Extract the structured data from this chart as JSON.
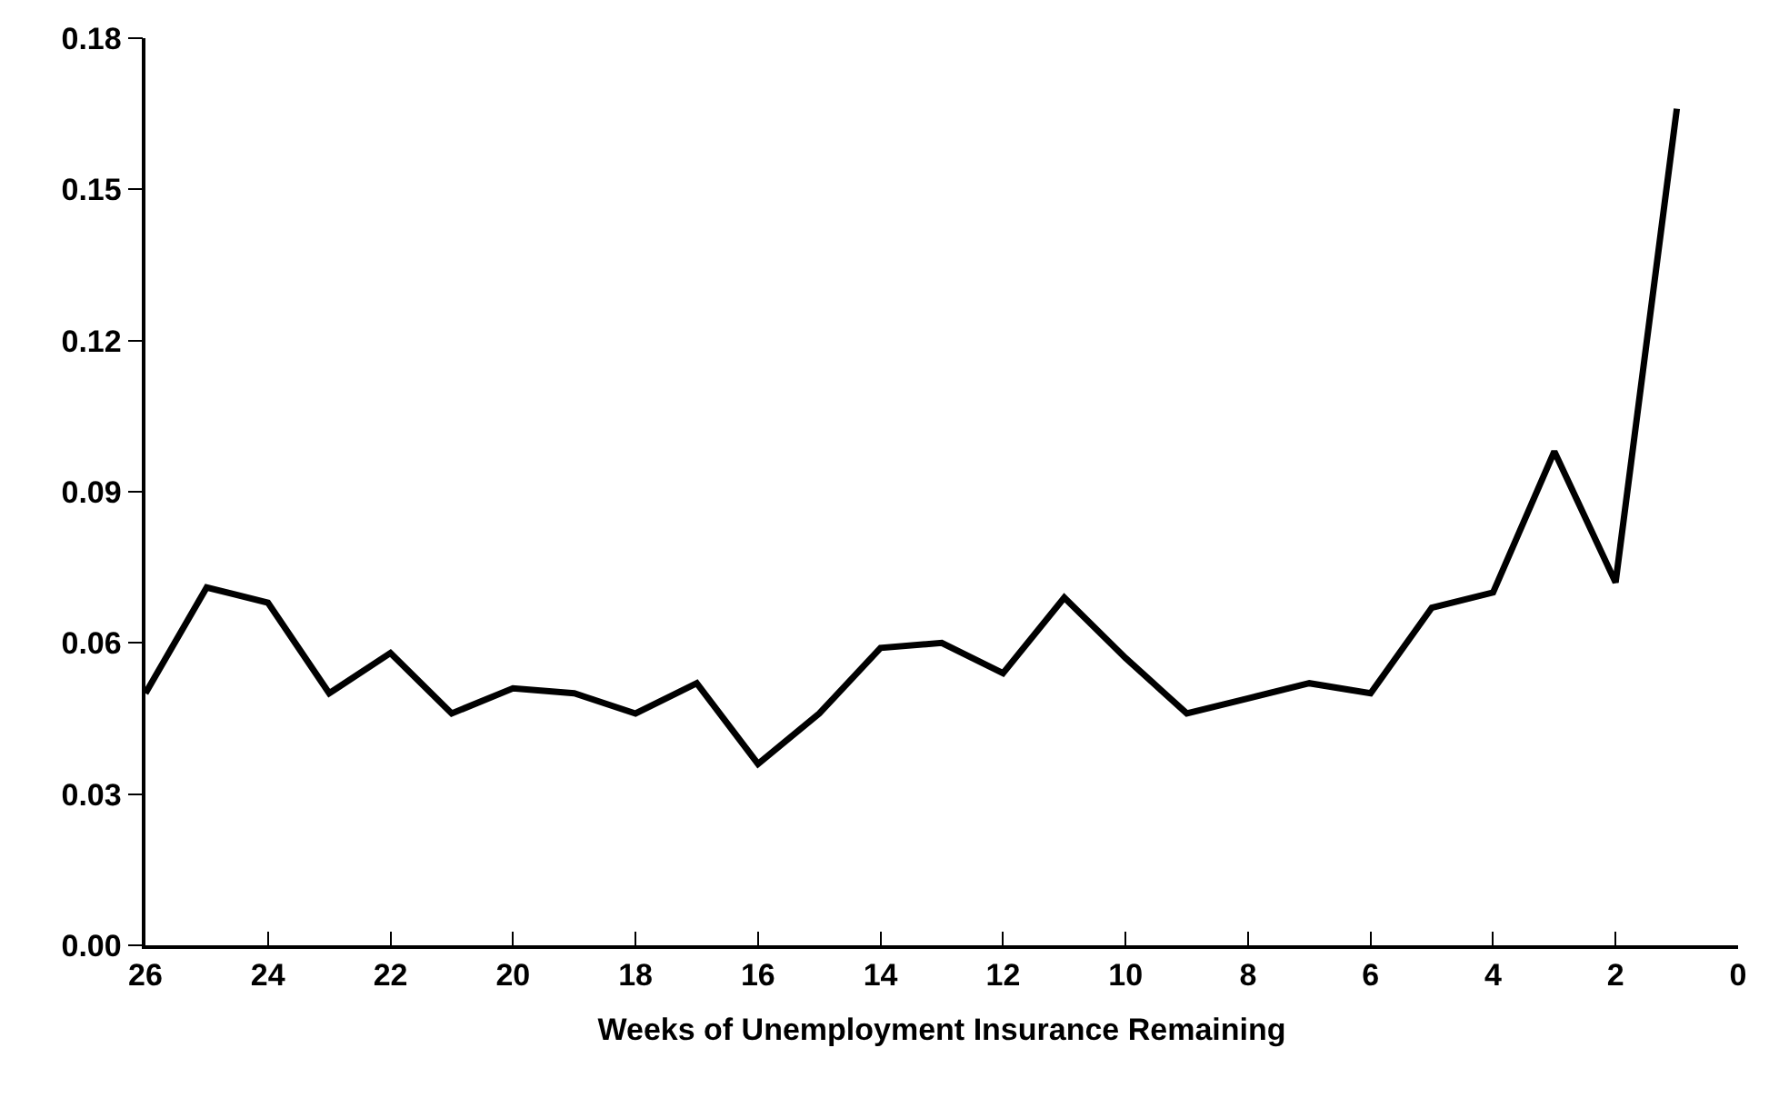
{
  "chart_data": {
    "type": "line",
    "xlabel": "Weeks of Unemployment Insurance Remaining",
    "x": [
      26,
      25,
      24,
      23,
      22,
      21,
      20,
      19,
      18,
      17,
      16,
      15,
      14,
      13,
      12,
      11,
      10,
      9,
      8,
      7,
      6,
      5,
      4,
      3,
      2,
      1
    ],
    "series": [
      {
        "color": "#000000",
        "values": [
          0.05,
          0.071,
          0.068,
          0.05,
          0.058,
          0.046,
          0.051,
          0.05,
          0.046,
          0.052,
          0.036,
          0.046,
          0.059,
          0.06,
          0.054,
          0.069,
          0.057,
          0.046,
          0.049,
          0.052,
          0.05,
          0.067,
          0.07,
          0.098,
          0.072,
          0.166
        ]
      }
    ],
    "xlim": [
      26,
      0
    ],
    "xticks": [
      26,
      24,
      22,
      20,
      18,
      16,
      14,
      12,
      10,
      8,
      6,
      4,
      2,
      0
    ],
    "ylim": [
      0,
      0.18
    ],
    "yticks": [
      {
        "value": 0,
        "label": "0.00"
      },
      {
        "value": 0.03,
        "label": "0.03"
      },
      {
        "value": 0.06,
        "label": "0.06"
      },
      {
        "value": 0.09,
        "label": "0.09"
      },
      {
        "value": 0.12,
        "label": "0.12"
      },
      {
        "value": 0.15,
        "label": "0.15"
      },
      {
        "value": 0.18,
        "label": "0.18"
      }
    ],
    "marker": "none",
    "line_style": "solid"
  }
}
